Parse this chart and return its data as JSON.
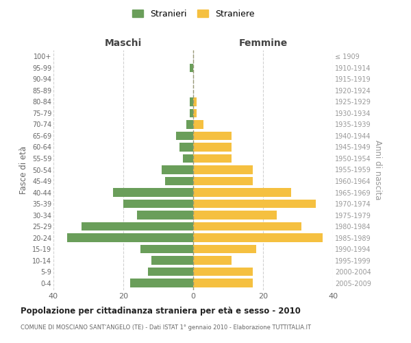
{
  "age_groups": [
    "0-4",
    "5-9",
    "10-14",
    "15-19",
    "20-24",
    "25-29",
    "30-34",
    "35-39",
    "40-44",
    "45-49",
    "50-54",
    "55-59",
    "60-64",
    "65-69",
    "70-74",
    "75-79",
    "80-84",
    "85-89",
    "90-94",
    "95-99",
    "100+"
  ],
  "birth_years": [
    "2005-2009",
    "2000-2004",
    "1995-1999",
    "1990-1994",
    "1985-1989",
    "1980-1984",
    "1975-1979",
    "1970-1974",
    "1965-1969",
    "1960-1964",
    "1955-1959",
    "1950-1954",
    "1945-1949",
    "1940-1944",
    "1935-1939",
    "1930-1934",
    "1925-1929",
    "1920-1924",
    "1915-1919",
    "1910-1914",
    "≤ 1909"
  ],
  "maschi": [
    18,
    13,
    12,
    15,
    36,
    32,
    16,
    20,
    23,
    8,
    9,
    3,
    4,
    5,
    2,
    1,
    1,
    0,
    0,
    1,
    0
  ],
  "femmine": [
    17,
    17,
    11,
    18,
    37,
    31,
    24,
    35,
    28,
    17,
    17,
    11,
    11,
    11,
    3,
    1,
    1,
    0,
    0,
    0,
    0
  ],
  "maschi_color": "#6a9e5a",
  "femmine_color": "#f5c040",
  "background_color": "#ffffff",
  "grid_color": "#cccccc",
  "title": "Popolazione per cittadinanza straniera per età e sesso - 2010",
  "subtitle": "COMUNE DI MOSCIANO SANT'ANGELO (TE) - Dati ISTAT 1° gennaio 2010 - Elaborazione TUTTITALIA.IT",
  "ylabel_left": "Fasce di età",
  "ylabel_right": "Anni di nascita",
  "label_maschi": "Maschi",
  "label_femmine": "Femmine",
  "xlim": 40,
  "legend_maschi": "Stranieri",
  "legend_femmine": "Straniere"
}
